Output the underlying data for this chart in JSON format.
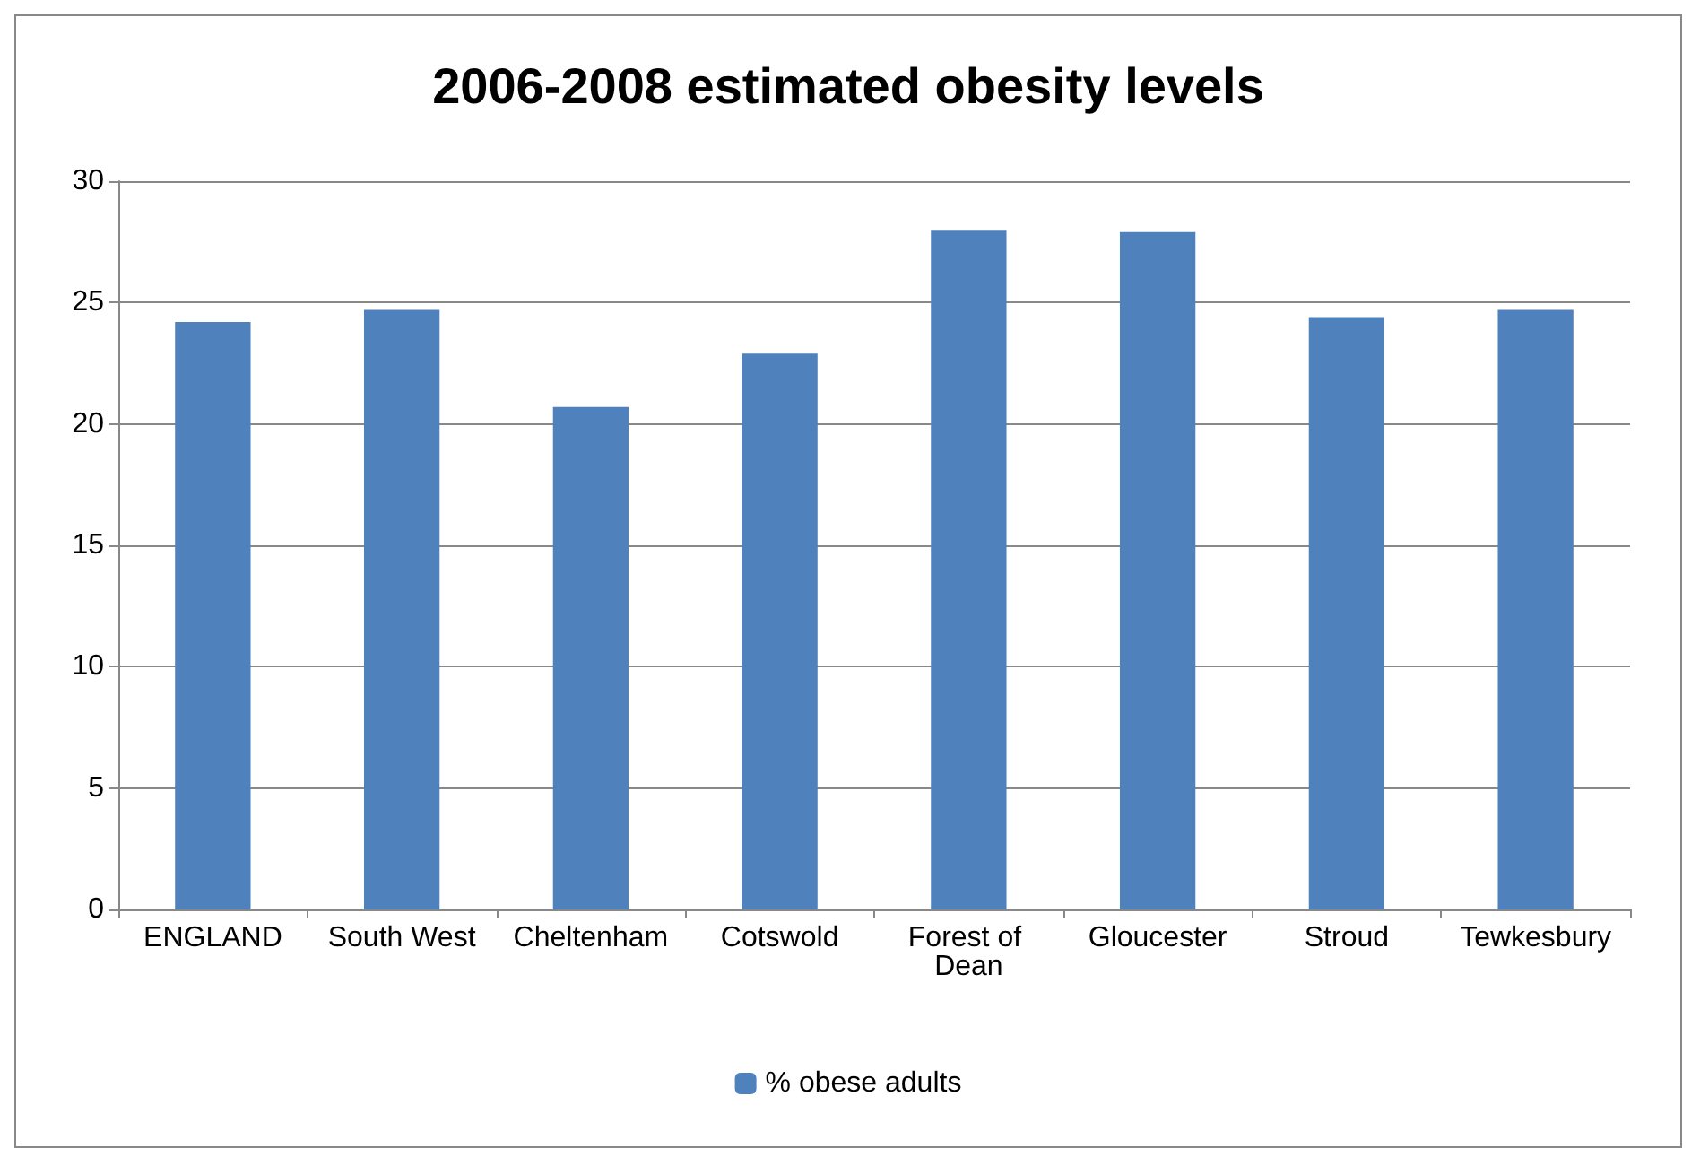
{
  "chart_data": {
    "type": "bar",
    "title": "2006-2008 estimated obesity levels",
    "categories": [
      "ENGLAND",
      "South West",
      "Cheltenham",
      "Cotswold",
      "Forest of Dean",
      "Gloucester",
      "Stroud",
      "Tewkesbury"
    ],
    "series": [
      {
        "name": "% obese adults",
        "color": "#4f81bd",
        "values": [
          24.2,
          24.7,
          20.7,
          22.9,
          28.0,
          27.9,
          24.4,
          24.7
        ]
      }
    ],
    "ylim": [
      0,
      30
    ],
    "yticks": [
      0,
      5,
      10,
      15,
      20,
      25,
      30
    ],
    "grid": "y",
    "legend": "bottom"
  }
}
